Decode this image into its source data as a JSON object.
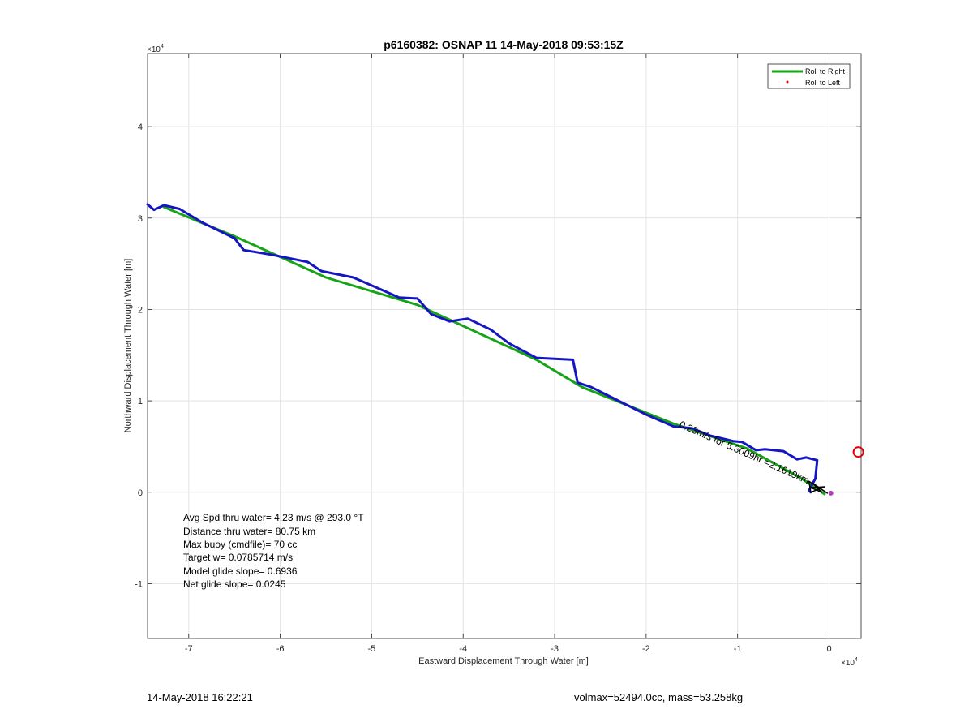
{
  "chart_data": {
    "type": "line",
    "title": "p6160382: OSNAP 11 14-May-2018 09:53:15Z",
    "xlabel": "Eastward Displacement Through Water [m]",
    "ylabel": "Northward Displacement Through Water [m]",
    "x_exponent_label": "×10",
    "x_exponent": "4",
    "y_exponent_label": "×10",
    "y_exponent": "4",
    "xlim": [
      -7.45,
      0.35
    ],
    "ylim": [
      -1.6,
      4.8
    ],
    "xticks": [
      -7,
      -6,
      -5,
      -4,
      -3,
      -2,
      -1,
      0
    ],
    "yticks": [
      -1,
      0,
      1,
      2,
      3,
      4
    ],
    "grid": true,
    "legend_position": "top-right",
    "legend": [
      {
        "label": "Roll to Right",
        "color": "#17a317",
        "marker": "line"
      },
      {
        "label": "Roll to Left",
        "color": "#e60000",
        "marker": "dot"
      }
    ],
    "series": [
      {
        "name": "Roll to Right",
        "color": "#17a317",
        "x": [
          -7.27,
          -6.5,
          -5.5,
          -4.5,
          -3.2,
          -2.7,
          -1.7,
          -0.9,
          -0.3,
          -0.05
        ],
        "y": [
          3.12,
          2.8,
          2.35,
          2.05,
          1.45,
          1.15,
          0.75,
          0.48,
          0.15,
          -0.02
        ]
      },
      {
        "name": "",
        "color": "#1616c0",
        "x": [
          -7.45,
          -7.38,
          -7.27,
          -7.1,
          -6.85,
          -6.5,
          -6.4,
          -6.1,
          -5.9,
          -5.7,
          -5.55,
          -5.2,
          -4.9,
          -4.7,
          -4.5,
          -4.35,
          -4.15,
          -3.95,
          -3.7,
          -3.5,
          -3.2,
          -2.8,
          -2.75,
          -2.6,
          -2.3,
          -2.0,
          -1.7,
          -1.5,
          -1.3,
          -1.05,
          -0.95,
          -0.8,
          -0.7,
          -0.5,
          -0.35,
          -0.25,
          -0.13,
          -0.15,
          -0.22,
          -0.2
        ],
        "y": [
          3.15,
          3.09,
          3.14,
          3.1,
          2.95,
          2.78,
          2.65,
          2.6,
          2.56,
          2.52,
          2.42,
          2.35,
          2.22,
          2.13,
          2.12,
          1.95,
          1.87,
          1.9,
          1.78,
          1.63,
          1.47,
          1.45,
          1.2,
          1.15,
          1.0,
          0.85,
          0.72,
          0.7,
          0.62,
          0.56,
          0.55,
          0.46,
          0.47,
          0.45,
          0.36,
          0.38,
          0.35,
          0.15,
          0.02,
          0.0
        ]
      },
      {
        "name": "",
        "color": "#000000",
        "x": [
          -0.22,
          -0.2,
          -0.05,
          -0.2,
          -0.08,
          -0.18,
          -0.02,
          -0.22
        ],
        "y": [
          0.12,
          0.0,
          0.06,
          0.05,
          0.0,
          0.1,
          -0.01,
          0.12
        ]
      }
    ],
    "end_marker": {
      "x": 0.02,
      "y": -0.01,
      "color": "#b040c0"
    },
    "circle_marker": {
      "x": 0.32,
      "y": 0.44,
      "color": "#e60000"
    },
    "curved_annotation": "0.23m/s for 5.3009hr =2.1619km",
    "stats": [
      "Avg Spd thru water=  4.23 m/s @ 293.0 °T",
      "Distance thru water= 80.75 km",
      "Max buoy (cmdfile)= 70 cc",
      "Target w= 0.0785714 m/s",
      "Model glide slope= 0.6936",
      "Net glide slope= 0.0245"
    ]
  },
  "footer": {
    "timestamp": "14-May-2018 16:22:21",
    "mass_info": "volmax=52494.0cc, mass=53.258kg"
  }
}
